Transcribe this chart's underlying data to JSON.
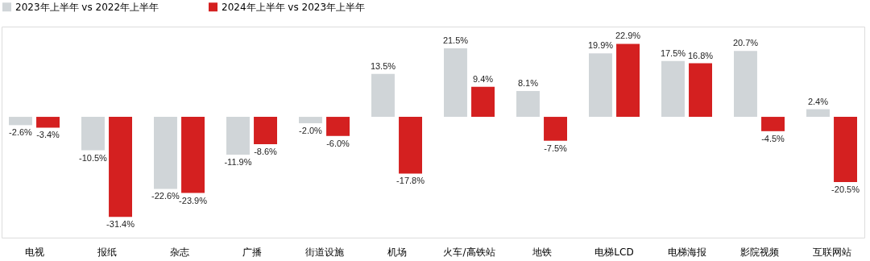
{
  "chart_data": {
    "type": "bar",
    "categories": [
      "电视",
      "报纸",
      "杂志",
      "广播",
      "街道设施",
      "机场",
      "火车/高铁站",
      "地铁",
      "电梯LCD",
      "电梯海报",
      "影院视频",
      "互联网站"
    ],
    "series": [
      {
        "name": "2023年上半年 vs 2022年上半年",
        "color": "#d0d5d8",
        "values": [
          -2.6,
          -10.5,
          -22.6,
          -11.9,
          -2.0,
          13.5,
          21.5,
          8.1,
          19.9,
          17.5,
          20.7,
          2.4
        ],
        "value_labels": [
          "-2.6%",
          "-10.5%",
          "-22.6%",
          "-11.9%",
          "-2.0%",
          "13.5%",
          "21.5%",
          "8.1%",
          "19.9%",
          "17.5%",
          "20.7%",
          "2.4%"
        ]
      },
      {
        "name": "2024年上半年 vs 2023年上半年",
        "color": "#d42020",
        "values": [
          -3.4,
          -31.4,
          -23.9,
          -8.6,
          -6.0,
          -17.8,
          9.4,
          -7.5,
          22.9,
          16.8,
          -4.5,
          -20.5
        ],
        "value_labels": [
          "-3.4%",
          "-31.4%",
          "-23.9%",
          "-8.6%",
          "-6.0%",
          "-17.8%",
          "9.4%",
          "-7.5%",
          "22.9%",
          "16.8%",
          "-4.5%",
          "-20.5%"
        ]
      }
    ],
    "legend": "top"
  }
}
